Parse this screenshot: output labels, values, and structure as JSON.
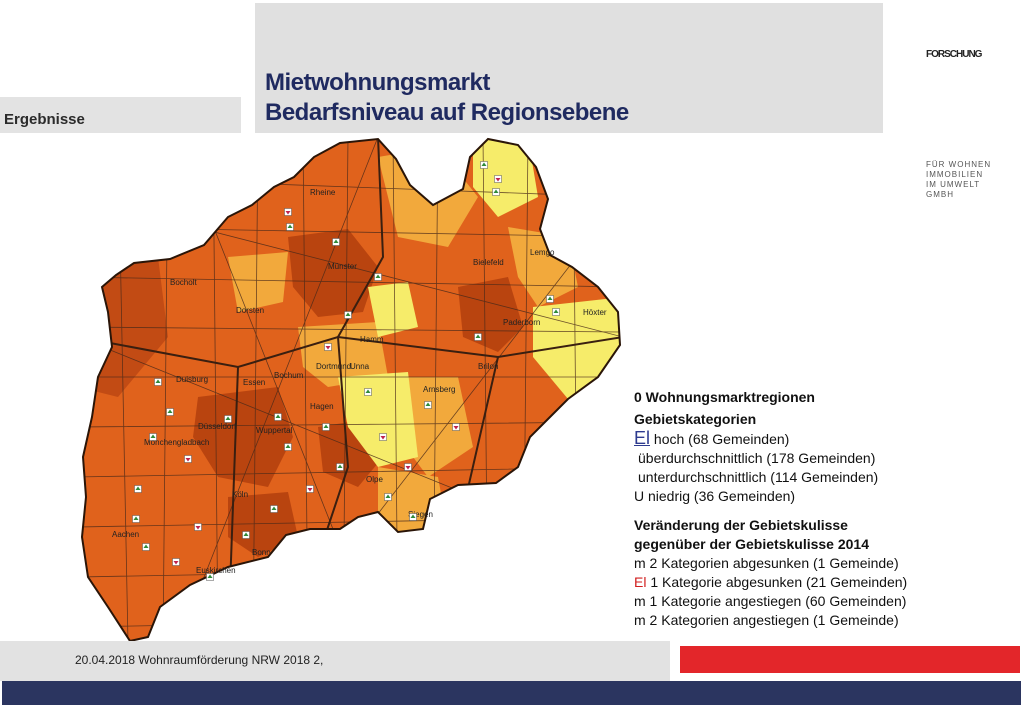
{
  "section": {
    "label": "Ergebnisse"
  },
  "title": {
    "line1": "Mietwohnungsmarkt",
    "line2": "Bedarfsniveau auf Regionsebene"
  },
  "brand": {
    "top": "FORSCHUNG",
    "sub": [
      "FÜR WOHNEN",
      "IMMOBILIEN",
      "IM UMWELT",
      "GMBH"
    ]
  },
  "map": {
    "colors": {
      "hoch": "#b9440f",
      "ueber": "#e0621c",
      "unter": "#f2a93c",
      "niedrig": "#f6ec6a",
      "border": "#4a2a1a"
    },
    "cities": [
      "Rheine",
      "Bielefeld",
      "Münster",
      "Lemgo",
      "Bocholt",
      "Paderborn",
      "Höxter",
      "Dorsten",
      "Hamm",
      "Unna",
      "Duisburg",
      "Essen",
      "Bochum",
      "Dortmund",
      "Arnsberg",
      "Brilon",
      "Hagen",
      "Düsseldorf",
      "Wuppertal",
      "Mönchengladbach",
      "Olpe",
      "Köln",
      "Aachen",
      "Bonn",
      "Siegen",
      "Euskirchen"
    ]
  },
  "legend": {
    "regions": "0 Wohnungsmarktregionen",
    "categories_title": "Gebietskategorien",
    "swatch1": "El",
    "cat1": "hoch (68 Gemeinden)",
    "cat2": "überdurchschnittlich (178 Gemeinden)",
    "cat3": "unterdurchschnittlich (114 Gemeinden)",
    "cat4": "U niedrig (36 Gemeinden)",
    "change_title_1": "Veränderung der Gebietskulisse",
    "change_title_2": "gegenüber der Gebietskulisse 2014",
    "ch1": "m  2 Kategorien abgesunken (1 Gemeinde)",
    "ch2_prefix": "El",
    "ch2": "1 Kategorie abgesunken (21 Gemeinden)",
    "ch3": "m  1 Kategorie angestiegen (60 Gemeinden)",
    "ch4": "m  2 Kategorien angestiegen (1 Gemeinde)"
  },
  "footer": {
    "text": "20.04.2018 Wohnraumförderung NRW 2018 2,"
  }
}
